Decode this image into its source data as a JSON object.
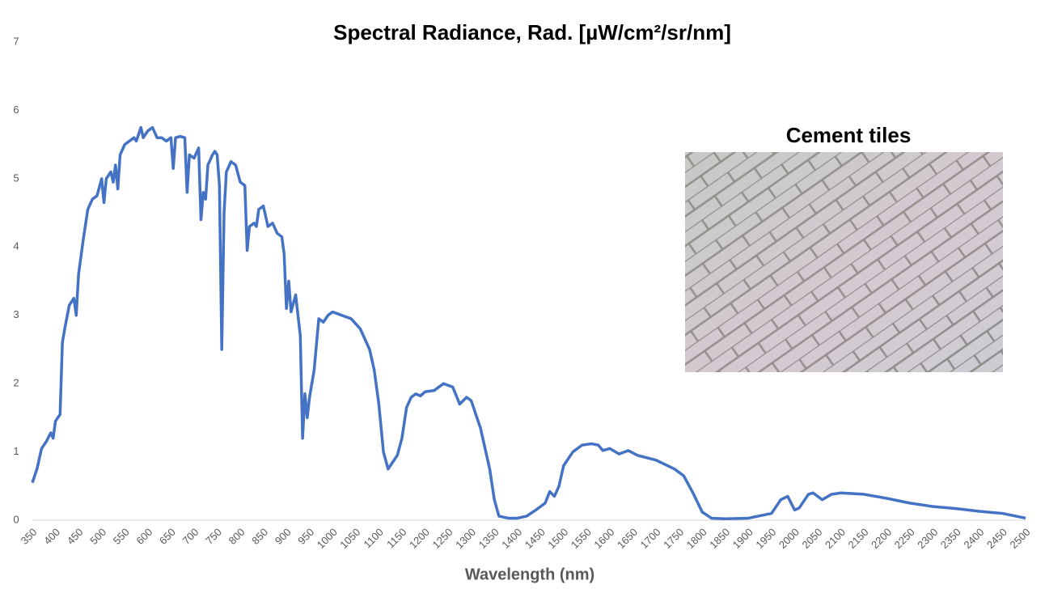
{
  "chart_data": {
    "type": "line",
    "title": "Spectral Radiance, Rad. [µW/cm²/sr/nm]",
    "xlabel": "Wavelength (nm)",
    "annotation": "Cement tiles",
    "color": "#4472c4",
    "x": [
      350,
      360,
      370,
      380,
      390,
      395,
      400,
      410,
      415,
      420,
      430,
      440,
      445,
      450,
      460,
      470,
      480,
      490,
      500,
      505,
      510,
      520,
      525,
      530,
      535,
      540,
      550,
      560,
      570,
      575,
      580,
      585,
      590,
      600,
      610,
      620,
      630,
      640,
      650,
      655,
      660,
      670,
      680,
      685,
      690,
      700,
      710,
      715,
      720,
      725,
      730,
      740,
      745,
      750,
      755,
      760,
      765,
      770,
      780,
      790,
      800,
      810,
      815,
      820,
      830,
      835,
      840,
      850,
      860,
      870,
      880,
      890,
      895,
      900,
      905,
      910,
      920,
      930,
      935,
      940,
      945,
      950,
      960,
      970,
      980,
      990,
      1000,
      1020,
      1040,
      1060,
      1080,
      1090,
      1100,
      1110,
      1120,
      1130,
      1140,
      1150,
      1160,
      1170,
      1180,
      1190,
      1200,
      1220,
      1240,
      1260,
      1275,
      1290,
      1300,
      1320,
      1340,
      1350,
      1360,
      1380,
      1400,
      1420,
      1440,
      1460,
      1470,
      1480,
      1490,
      1500,
      1520,
      1540,
      1560,
      1575,
      1585,
      1600,
      1620,
      1640,
      1660,
      1700,
      1740,
      1760,
      1780,
      1800,
      1820,
      1850,
      1900,
      1950,
      1970,
      1985,
      2000,
      2010,
      2030,
      2040,
      2060,
      2080,
      2100,
      2150,
      2200,
      2250,
      2300,
      2350,
      2400,
      2450,
      2500
    ],
    "values": [
      0.55,
      0.75,
      1.05,
      1.15,
      1.28,
      1.2,
      1.45,
      1.55,
      2.6,
      2.8,
      3.15,
      3.25,
      3.0,
      3.6,
      4.1,
      4.55,
      4.7,
      4.75,
      5.0,
      4.65,
      5.0,
      5.1,
      4.95,
      5.2,
      4.85,
      5.35,
      5.5,
      5.55,
      5.6,
      5.55,
      5.65,
      5.75,
      5.6,
      5.7,
      5.75,
      5.6,
      5.6,
      5.55,
      5.6,
      5.15,
      5.6,
      5.62,
      5.6,
      4.8,
      5.35,
      5.3,
      5.45,
      4.4,
      4.8,
      4.7,
      5.2,
      5.35,
      5.4,
      5.35,
      4.9,
      2.5,
      4.5,
      5.1,
      5.25,
      5.2,
      4.95,
      4.9,
      3.95,
      4.3,
      4.35,
      4.3,
      4.55,
      4.6,
      4.3,
      4.35,
      4.2,
      4.15,
      3.9,
      3.1,
      3.5,
      3.05,
      3.3,
      2.7,
      1.2,
      1.85,
      1.5,
      1.8,
      2.2,
      2.95,
      2.9,
      3.0,
      3.05,
      3.0,
      2.95,
      2.8,
      2.5,
      2.2,
      1.7,
      1.0,
      0.75,
      0.85,
      0.95,
      1.2,
      1.65,
      1.8,
      1.85,
      1.82,
      1.88,
      1.9,
      2.0,
      1.95,
      1.7,
      1.8,
      1.75,
      1.35,
      0.75,
      0.3,
      0.06,
      0.03,
      0.03,
      0.06,
      0.15,
      0.25,
      0.42,
      0.35,
      0.5,
      0.8,
      1.0,
      1.1,
      1.12,
      1.1,
      1.02,
      1.05,
      0.97,
      1.02,
      0.95,
      0.88,
      0.75,
      0.65,
      0.4,
      0.12,
      0.03,
      0.02,
      0.03,
      0.1,
      0.3,
      0.35,
      0.15,
      0.18,
      0.38,
      0.4,
      0.3,
      0.38,
      0.4,
      0.38,
      0.32,
      0.25,
      0.2,
      0.17,
      0.13,
      0.1,
      0.03
    ],
    "xlim": [
      350,
      2500
    ],
    "ylim": [
      0,
      7
    ],
    "xticks": [
      350,
      400,
      450,
      500,
      550,
      600,
      650,
      700,
      750,
      800,
      850,
      900,
      950,
      1000,
      1050,
      1100,
      1150,
      1200,
      1250,
      1300,
      1350,
      1400,
      1450,
      1500,
      1550,
      1600,
      1650,
      1700,
      1750,
      1800,
      1850,
      1900,
      1950,
      2000,
      2050,
      2100,
      2150,
      2200,
      2250,
      2300,
      2350,
      2400,
      2450,
      2500
    ],
    "yticks": [
      0,
      1,
      2,
      3,
      4,
      5,
      6,
      7
    ]
  }
}
